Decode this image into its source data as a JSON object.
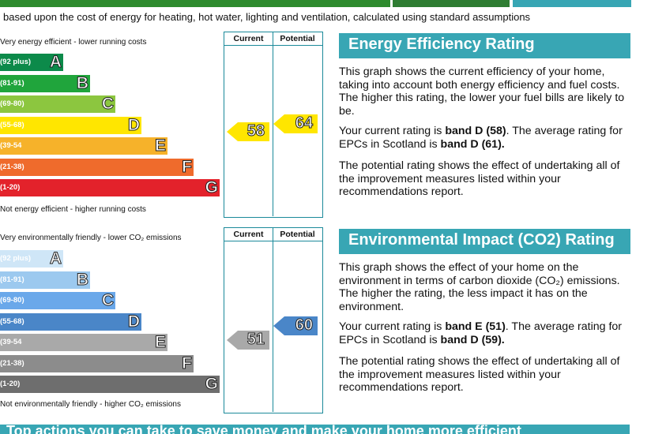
{
  "caption": "based upon the cost of energy for heating, hot water, lighting and ventilation, calculated using standard assumptions",
  "colors": {
    "teal": "#38a6b4",
    "frame": "#1b8a9a"
  },
  "energy": {
    "top_label": "Very energy efficient - lower running costs",
    "bottom_label": "Not energy efficient - higher running costs",
    "col_current": "Current",
    "col_potential": "Potential",
    "bands": [
      {
        "range": "(92 plus)",
        "letter": "A",
        "color": "#0c8a4a"
      },
      {
        "range": "(81-91)",
        "letter": "B",
        "color": "#20a53c"
      },
      {
        "range": "(69-80)",
        "letter": "C",
        "color": "#8cc63f"
      },
      {
        "range": "(55-68)",
        "letter": "D",
        "color": "#ffe600"
      },
      {
        "range": "(39-54",
        "letter": "E",
        "color": "#f6b22a"
      },
      {
        "range": "(21-38)",
        "letter": "F",
        "color": "#ef6b2c"
      },
      {
        "range": "(1-20)",
        "letter": "G",
        "color": "#e3222b"
      }
    ],
    "current": "58",
    "potential": "64",
    "current_color": "#ffe600",
    "potential_color": "#ffe600"
  },
  "environment": {
    "top_label": "Very environmentally friendly - lower CO₂ emissions",
    "bottom_label": "Not environmentally friendly - higher CO₂ emissions",
    "col_current": "Current",
    "col_potential": "Potential",
    "bands": [
      {
        "range": "(92 plus)",
        "letter": "A",
        "color": "#cfe6f7"
      },
      {
        "range": "(81-91)",
        "letter": "B",
        "color": "#9cc9ef"
      },
      {
        "range": "(69-80)",
        "letter": "C",
        "color": "#6aa8ea"
      },
      {
        "range": "(55-68)",
        "letter": "D",
        "color": "#4a86c8"
      },
      {
        "range": "(39-54",
        "letter": "E",
        "color": "#a9a9a9"
      },
      {
        "range": "(21-38)",
        "letter": "F",
        "color": "#8c8c8c"
      },
      {
        "range": "(1-20)",
        "letter": "G",
        "color": "#6e6e6e"
      }
    ],
    "current": "51",
    "potential": "60",
    "current_color": "#a9a9a9",
    "potential_color": "#4a86c8"
  },
  "ee_panel": {
    "title": "Energy Efficiency Rating",
    "p1": "This graph shows the current efficiency of your home, taking into account both energy efficiency and fuel costs. The higher this rating, the lower your fuel bills are likely to be.",
    "p2_pre": "Your current rating is ",
    "p2_bold1": "band D (58)",
    "p2_mid": ". The average rating for EPCs in Scotland is ",
    "p2_bold2": "band D (61).",
    "p3": "The potential rating shows the effect of undertaking all of the improvement measures listed within your recommendations report."
  },
  "ei_panel": {
    "title": "Environmental Impact (CO2) Rating",
    "p1": "This graph shows the effect of your home on the environment in terms of carbon dioxide (CO₂) emissions. The higher the rating, the less impact it has on the environment.",
    "p2_pre": "Your current rating is ",
    "p2_bold1": "band E (51)",
    "p2_mid": ". The average rating for EPCs in Scotland is ",
    "p2_bold2": "band D (59).",
    "p3": "The potential rating shows the effect of undertaking all of the improvement measures listed within your recommendations report."
  },
  "bottom_heading": "Top actions you can take to save money and make your home more efficient"
}
